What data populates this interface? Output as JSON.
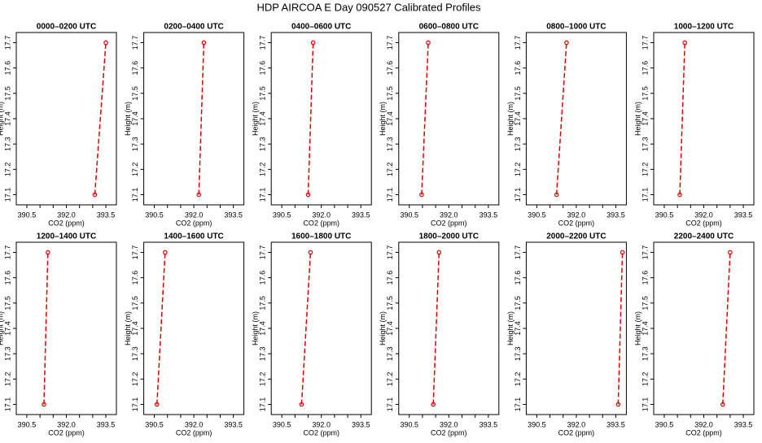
{
  "title": "HDP AIRCOA E  Day 090527  Calibrated Profiles",
  "chart_data": [
    {
      "type": "line",
      "title": "0000–0200 UTC",
      "x_label": "CO2 (ppm)",
      "y_label": "Height (m)",
      "xlim": [
        390.1,
        393.9
      ],
      "ylim": [
        17.06,
        17.74
      ],
      "xticks": [
        {
          "value": 390.5,
          "label": "390.5"
        },
        {
          "value": 392,
          "label": "392.0"
        },
        {
          "value": 393.5,
          "label": "393.5"
        }
      ],
      "xminor": [
        391,
        391.5,
        392.5,
        393
      ],
      "yticks": [
        17.1,
        17.2,
        17.3,
        17.4,
        17.5,
        17.6,
        17.7
      ],
      "series": [
        {
          "color": "#e00000",
          "x": [
            393.08,
            393.5
          ],
          "values": [
            17.1,
            17.7
          ]
        }
      ]
    },
    {
      "type": "line",
      "title": "0200–0400 UTC",
      "x_label": "CO2 (ppm)",
      "y_label": "Height (m)",
      "xlim": [
        390.1,
        393.9
      ],
      "ylim": [
        17.06,
        17.74
      ],
      "xticks": [
        {
          "value": 390.5,
          "label": "390.5"
        },
        {
          "value": 392,
          "label": "392.0"
        },
        {
          "value": 393.5,
          "label": "393.5"
        }
      ],
      "xminor": [
        391,
        391.5,
        392.5,
        393
      ],
      "yticks": [
        17.1,
        17.2,
        17.3,
        17.4,
        17.5,
        17.6,
        17.7
      ],
      "series": [
        {
          "color": "#e00000",
          "x": [
            392.19,
            392.38
          ],
          "values": [
            17.1,
            17.7
          ]
        }
      ]
    },
    {
      "type": "line",
      "title": "0400–0600 UTC",
      "x_label": "CO2 (ppm)",
      "y_label": "Height (m)",
      "xlim": [
        390.1,
        393.9
      ],
      "ylim": [
        17.06,
        17.74
      ],
      "xticks": [
        {
          "value": 390.5,
          "label": "390.5"
        },
        {
          "value": 392,
          "label": "392.0"
        },
        {
          "value": 393.5,
          "label": "393.5"
        }
      ],
      "xminor": [
        391,
        391.5,
        392.5,
        393
      ],
      "yticks": [
        17.1,
        17.2,
        17.3,
        17.4,
        17.5,
        17.6,
        17.7
      ],
      "series": [
        {
          "color": "#e00000",
          "x": [
            391.5,
            391.69
          ],
          "values": [
            17.1,
            17.7
          ]
        }
      ]
    },
    {
      "type": "line",
      "title": "0600–0800 UTC",
      "x_label": "CO2 (ppm)",
      "y_label": "Height (m)",
      "xlim": [
        390.1,
        393.9
      ],
      "ylim": [
        17.06,
        17.74
      ],
      "xticks": [
        {
          "value": 390.5,
          "label": "390.5"
        },
        {
          "value": 392,
          "label": "392.0"
        },
        {
          "value": 393.5,
          "label": "393.5"
        }
      ],
      "xminor": [
        391,
        391.5,
        392.5,
        393
      ],
      "yticks": [
        17.1,
        17.2,
        17.3,
        17.4,
        17.5,
        17.6,
        17.7
      ],
      "series": [
        {
          "color": "#e00000",
          "x": [
            390.97,
            391.22
          ],
          "values": [
            17.1,
            17.7
          ]
        }
      ]
    },
    {
      "type": "line",
      "title": "0800–1000 UTC",
      "x_label": "CO2 (ppm)",
      "y_label": "Height (m)",
      "xlim": [
        390.1,
        393.9
      ],
      "ylim": [
        17.06,
        17.74
      ],
      "xticks": [
        {
          "value": 390.5,
          "label": "390.5"
        },
        {
          "value": 392,
          "label": "392.0"
        },
        {
          "value": 393.5,
          "label": "393.5"
        }
      ],
      "xminor": [
        391,
        391.5,
        392.5,
        393
      ],
      "yticks": [
        17.1,
        17.2,
        17.3,
        17.4,
        17.5,
        17.6,
        17.7
      ],
      "series": [
        {
          "color": "#e00000",
          "x": [
            391.25,
            391.63
          ],
          "values": [
            17.1,
            17.7
          ]
        }
      ]
    },
    {
      "type": "line",
      "title": "1000–1200 UTC",
      "x_label": "CO2 (ppm)",
      "y_label": "Height (m)",
      "xlim": [
        390.1,
        393.9
      ],
      "ylim": [
        17.06,
        17.74
      ],
      "xticks": [
        {
          "value": 390.5,
          "label": "390.5"
        },
        {
          "value": 392,
          "label": "392.0"
        },
        {
          "value": 393.5,
          "label": "393.5"
        }
      ],
      "xminor": [
        391,
        391.5,
        392.5,
        393
      ],
      "yticks": [
        17.1,
        17.2,
        17.3,
        17.4,
        17.5,
        17.6,
        17.7
      ],
      "series": [
        {
          "color": "#e00000",
          "x": [
            391.09,
            391.28
          ],
          "values": [
            17.1,
            17.7
          ]
        }
      ]
    },
    {
      "type": "line",
      "title": "1200–1400 UTC",
      "x_label": "CO2 (ppm)",
      "y_label": "Height (m)",
      "xlim": [
        390.1,
        393.9
      ],
      "ylim": [
        17.06,
        17.74
      ],
      "xticks": [
        {
          "value": 390.5,
          "label": "390.5"
        },
        {
          "value": 392,
          "label": "392.0"
        },
        {
          "value": 393.5,
          "label": "393.5"
        }
      ],
      "xminor": [
        391,
        391.5,
        392.5,
        393
      ],
      "yticks": [
        17.1,
        17.2,
        17.3,
        17.4,
        17.5,
        17.6,
        17.7
      ],
      "series": [
        {
          "color": "#e00000",
          "x": [
            391.15,
            391.3
          ],
          "values": [
            17.1,
            17.7
          ]
        }
      ]
    },
    {
      "type": "line",
      "title": "1400–1600 UTC",
      "x_label": "CO2 (ppm)",
      "y_label": "Height (m)",
      "xlim": [
        390.1,
        393.9
      ],
      "ylim": [
        17.06,
        17.74
      ],
      "xticks": [
        {
          "value": 390.5,
          "label": "390.5"
        },
        {
          "value": 392,
          "label": "392.0"
        },
        {
          "value": 393.5,
          "label": "393.5"
        }
      ],
      "xminor": [
        391,
        391.5,
        392.5,
        393
      ],
      "yticks": [
        17.1,
        17.2,
        17.3,
        17.4,
        17.5,
        17.6,
        17.7
      ],
      "series": [
        {
          "color": "#e00000",
          "x": [
            390.6,
            390.91
          ],
          "values": [
            17.1,
            17.7
          ]
        }
      ]
    },
    {
      "type": "line",
      "title": "1600–1800 UTC",
      "x_label": "CO2 (ppm)",
      "y_label": "Height (m)",
      "xlim": [
        390.1,
        393.9
      ],
      "ylim": [
        17.06,
        17.74
      ],
      "xticks": [
        {
          "value": 390.5,
          "label": "390.5"
        },
        {
          "value": 392,
          "label": "392.0"
        },
        {
          "value": 393.5,
          "label": "393.5"
        }
      ],
      "xminor": [
        391,
        391.5,
        392.5,
        393
      ],
      "yticks": [
        17.1,
        17.2,
        17.3,
        17.4,
        17.5,
        17.6,
        17.7
      ],
      "series": [
        {
          "color": "#e00000",
          "x": [
            391.25,
            391.59
          ],
          "values": [
            17.1,
            17.7
          ]
        }
      ]
    },
    {
      "type": "line",
      "title": "1800–2000 UTC",
      "x_label": "CO2 (ppm)",
      "y_label": "Height (m)",
      "xlim": [
        390.1,
        393.9
      ],
      "ylim": [
        17.06,
        17.74
      ],
      "xticks": [
        {
          "value": 390.5,
          "label": "390.5"
        },
        {
          "value": 392,
          "label": "392.0"
        },
        {
          "value": 393.5,
          "label": "393.5"
        }
      ],
      "xminor": [
        391,
        391.5,
        392.5,
        393
      ],
      "yticks": [
        17.1,
        17.2,
        17.3,
        17.4,
        17.5,
        17.6,
        17.7
      ],
      "series": [
        {
          "color": "#e00000",
          "x": [
            391.41,
            391.63
          ],
          "values": [
            17.1,
            17.7
          ]
        }
      ]
    },
    {
      "type": "line",
      "title": "2000–2200 UTC",
      "x_label": "CO2 (ppm)",
      "y_label": "Height (m)",
      "xlim": [
        390.1,
        393.9
      ],
      "ylim": [
        17.06,
        17.74
      ],
      "xticks": [
        {
          "value": 390.5,
          "label": "390.5"
        },
        {
          "value": 392,
          "label": "392.0"
        },
        {
          "value": 393.5,
          "label": "393.5"
        }
      ],
      "xminor": [
        391,
        391.5,
        392.5,
        393
      ],
      "yticks": [
        17.1,
        17.2,
        17.3,
        17.4,
        17.5,
        17.6,
        17.7
      ],
      "series": [
        {
          "color": "#e00000",
          "x": [
            393.59,
            393.75
          ],
          "values": [
            17.1,
            17.7
          ]
        }
      ]
    },
    {
      "type": "line",
      "title": "2200–2400 UTC",
      "x_label": "CO2 (ppm)",
      "y_label": "Height (m)",
      "xlim": [
        390.1,
        393.9
      ],
      "ylim": [
        17.06,
        17.74
      ],
      "xticks": [
        {
          "value": 390.5,
          "label": "390.5"
        },
        {
          "value": 392,
          "label": "392.0"
        },
        {
          "value": 393.5,
          "label": "393.5"
        }
      ],
      "xminor": [
        391,
        391.5,
        392.5,
        393
      ],
      "yticks": [
        17.1,
        17.2,
        17.3,
        17.4,
        17.5,
        17.6,
        17.7
      ],
      "series": [
        {
          "color": "#e00000",
          "x": [
            392.72,
            393.0
          ],
          "values": [
            17.1,
            17.7
          ]
        }
      ]
    }
  ]
}
